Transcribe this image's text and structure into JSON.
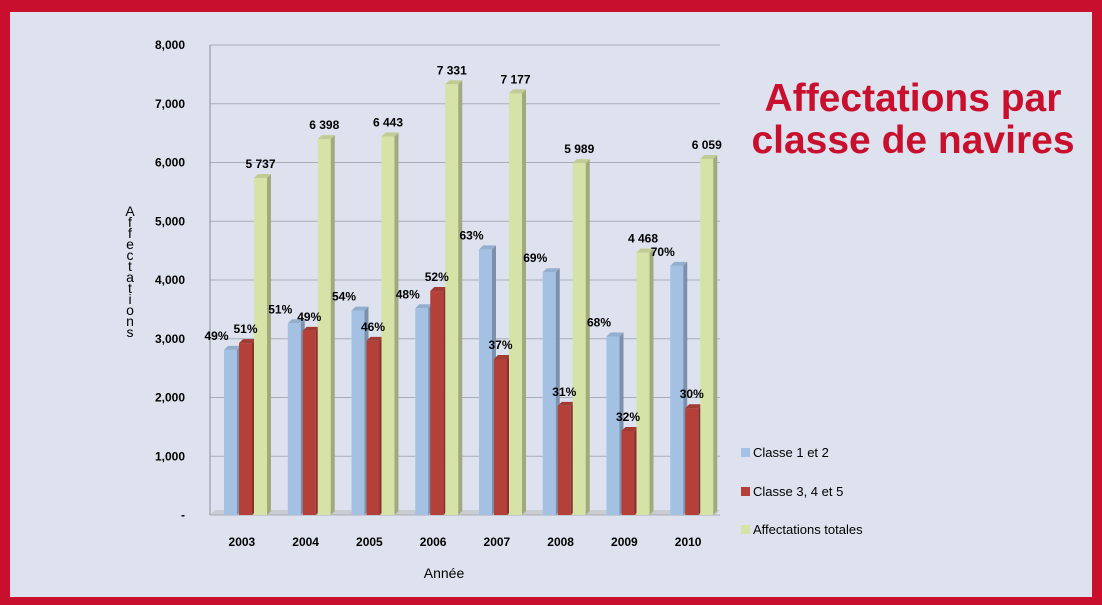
{
  "chart_data": {
    "type": "bar",
    "title": "Affectations par classe de navires",
    "xlabel": "Année",
    "ylabel": "Affectations",
    "ylim": [
      0,
      8000
    ],
    "y_ticks": [
      "-",
      "1,000",
      "2,000",
      "3,000",
      "4,000",
      "5,000",
      "6,000",
      "7,000",
      "8,000"
    ],
    "y_tick_values": [
      0,
      1000,
      2000,
      3000,
      4000,
      5000,
      6000,
      7000,
      8000
    ],
    "categories": [
      "2003",
      "2004",
      "2005",
      "2006",
      "2007",
      "2008",
      "2009",
      "2010"
    ],
    "series": [
      {
        "name": "Classe 1 et 2",
        "color": "#a4c1e4",
        "values": [
          2811,
          3263,
          3479,
          3519,
          4521,
          4132,
          3038,
          4241
        ],
        "labels": [
          "49%",
          "51%",
          "54%",
          "48%",
          "63%",
          "69%",
          "68%",
          "70%"
        ]
      },
      {
        "name": "Classe 3, 4 et 5",
        "color": "#b3413a",
        "values": [
          2926,
          3135,
          2964,
          3812,
          2656,
          1857,
          1430,
          1818
        ],
        "labels": [
          "51%",
          "49%",
          "46%",
          "52%",
          "37%",
          "31%",
          "32%",
          "30%"
        ]
      },
      {
        "name": "Affectations totales",
        "color": "#d6e3a6",
        "values": [
          5737,
          6398,
          6443,
          7331,
          7177,
          5989,
          4468,
          6059
        ],
        "labels": [
          "5 737",
          "6  398",
          "6 443",
          "7 331",
          "7 177",
          "5 989",
          "4 468",
          "6 059"
        ]
      }
    ],
    "grid": true,
    "legend_position": "right"
  }
}
